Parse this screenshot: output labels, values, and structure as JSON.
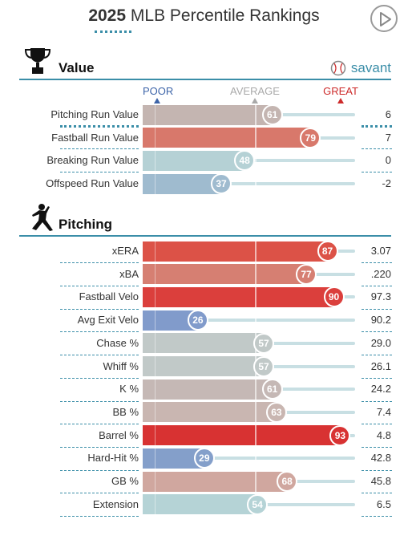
{
  "header": {
    "year": "2025",
    "title": "MLB Percentile Rankings"
  },
  "brand": {
    "name": "savant"
  },
  "scale": {
    "poor": "POOR",
    "average": "AVERAGE",
    "great": "GREAT"
  },
  "colors": {
    "accent": "#3b8ea8",
    "poor": "#3d64a8",
    "average": "#a9a9a9",
    "great": "#cd2b2b"
  },
  "sections": [
    {
      "title": "Value",
      "icon": "trophy-icon",
      "rows": [
        {
          "label": "Pitching Run Value",
          "percentile": 61,
          "value": "6",
          "color": "#c4b5b1"
        },
        {
          "label": "Fastball Run Value",
          "percentile": 79,
          "value": "7",
          "color": "#d8786b"
        },
        {
          "label": "Breaking Run Value",
          "percentile": 48,
          "value": "0",
          "color": "#b5d1d5"
        },
        {
          "label": "Offspeed Run Value",
          "percentile": 37,
          "value": "-2",
          "color": "#9fbbcf"
        }
      ]
    },
    {
      "title": "Pitching",
      "icon": "pitcher-icon",
      "rows": [
        {
          "label": "xERA",
          "percentile": 87,
          "value": "3.07",
          "color": "#dc5247"
        },
        {
          "label": "xBA",
          "percentile": 77,
          "value": ".220",
          "color": "#d67f72"
        },
        {
          "label": "Fastball Velo",
          "percentile": 90,
          "value": "97.3",
          "color": "#db3f3c"
        },
        {
          "label": "Avg Exit Velo",
          "percentile": 26,
          "value": "90.2",
          "color": "#819bcb"
        },
        {
          "label": "Chase %",
          "percentile": 57,
          "value": "29.0",
          "color": "#c1c9c8"
        },
        {
          "label": "Whiff %",
          "percentile": 57,
          "value": "26.1",
          "color": "#c1c9c8"
        },
        {
          "label": "K %",
          "percentile": 61,
          "value": "24.2",
          "color": "#c5b8b5"
        },
        {
          "label": "BB %",
          "percentile": 63,
          "value": "7.4",
          "color": "#c9b6b1"
        },
        {
          "label": "Barrel %",
          "percentile": 93,
          "value": "4.8",
          "color": "#d83232"
        },
        {
          "label": "Hard-Hit %",
          "percentile": 29,
          "value": "42.8",
          "color": "#849fca"
        },
        {
          "label": "GB %",
          "percentile": 68,
          "value": "45.8",
          "color": "#d0a79f"
        },
        {
          "label": "Extension",
          "percentile": 54,
          "value": "6.5",
          "color": "#b5d3d6"
        }
      ]
    }
  ]
}
